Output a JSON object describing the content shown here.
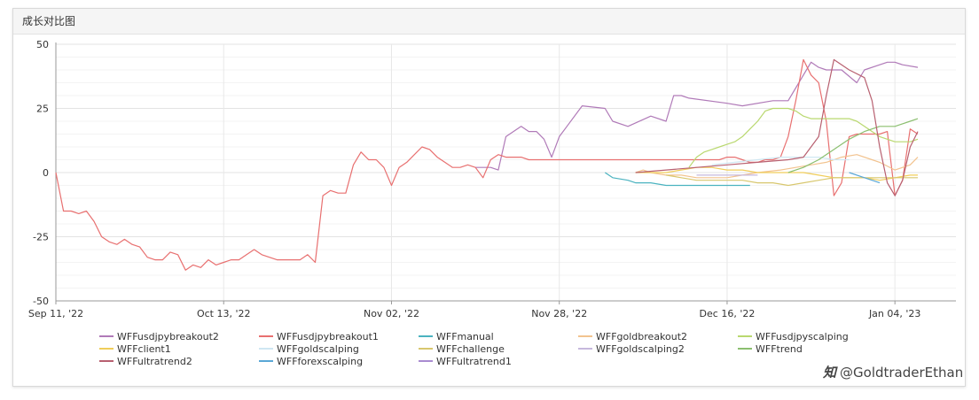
{
  "panel": {
    "title": "成长对比图"
  },
  "watermark": {
    "text": "@GoldtraderEthan",
    "logo": "知"
  },
  "chart_data": {
    "type": "line",
    "xlabel": "",
    "ylabel": "",
    "grid": true,
    "legend_position": "bottom",
    "xlim": [
      0,
      118
    ],
    "ylim": [
      -50,
      50
    ],
    "y_ticks": [
      50,
      25,
      0,
      -25,
      -50
    ],
    "x_ticks": [
      {
        "x": 0,
        "label": "Sep 11, '22"
      },
      {
        "x": 22,
        "label": "Oct 13, '22"
      },
      {
        "x": 44,
        "label": "Nov 02, '22"
      },
      {
        "x": 66,
        "label": "Nov 28, '22"
      },
      {
        "x": 88,
        "label": "Dec 16, '22"
      },
      {
        "x": 110,
        "label": "Jan 04, '23"
      }
    ],
    "series": [
      {
        "name": "WFFusdjpybreakout2",
        "color": "#b07ab8",
        "x": [
          55,
          57,
          58,
          59,
          61,
          62,
          63,
          64,
          65,
          66,
          67,
          69,
          72,
          73,
          75,
          78,
          80,
          81,
          82,
          83,
          88,
          90,
          94,
          96,
          99,
          100,
          101,
          103,
          105,
          106,
          108,
          109,
          110,
          111,
          113
        ],
        "y": [
          2,
          2,
          1,
          14,
          18,
          16,
          16,
          13,
          6,
          14,
          18,
          26,
          25,
          20,
          18,
          22,
          20,
          30,
          30,
          29,
          27,
          26,
          28,
          28,
          43,
          41,
          40,
          40,
          35,
          40,
          42,
          43,
          43,
          42,
          41
        ]
      },
      {
        "name": "WFFusdjpybreakout1",
        "color": "#e87070",
        "x": [
          0,
          1,
          2,
          3,
          4,
          5,
          6,
          7,
          8,
          9,
          10,
          11,
          12,
          13,
          14,
          15,
          16,
          17,
          18,
          19,
          20,
          21,
          22,
          23,
          24,
          25,
          26,
          27,
          28,
          29,
          30,
          31,
          32,
          33,
          34,
          35,
          36,
          37,
          38,
          39,
          40,
          41,
          42,
          43,
          44,
          45,
          46,
          47,
          48,
          49,
          50,
          51,
          52,
          53,
          54,
          55,
          56,
          57,
          58,
          59,
          60,
          61,
          62,
          63,
          64,
          65,
          66,
          67,
          68,
          69,
          70,
          71,
          72,
          73,
          74,
          75,
          76,
          77,
          78,
          79,
          80,
          81,
          82,
          83,
          84,
          85,
          86,
          87,
          88,
          89,
          90,
          91,
          92,
          93,
          94,
          95,
          96,
          97,
          98,
          99,
          100,
          101,
          102,
          103,
          104,
          105,
          106,
          107,
          108,
          109,
          110,
          111,
          112,
          113
        ],
        "y": [
          0,
          -15,
          -15,
          -16,
          -15,
          -19,
          -25,
          -27,
          -28,
          -26,
          -28,
          -29,
          -33,
          -34,
          -34,
          -31,
          -32,
          -38,
          -36,
          -37,
          -34,
          -36,
          -35,
          -34,
          -34,
          -32,
          -30,
          -32,
          -33,
          -34,
          -34,
          -34,
          -34,
          -32,
          -35,
          -9,
          -7,
          -8,
          -8,
          3,
          8,
          5,
          5,
          2,
          -5,
          2,
          4,
          7,
          10,
          9,
          6,
          4,
          2,
          2,
          3,
          2,
          -2,
          5,
          7,
          6,
          6,
          6,
          5,
          5,
          5,
          5,
          5,
          5,
          5,
          5,
          5,
          5,
          5,
          5,
          5,
          5,
          5,
          5,
          5,
          5,
          5,
          5,
          5,
          5,
          5,
          5,
          5,
          5,
          6,
          6,
          5,
          4,
          4,
          5,
          5,
          6,
          14,
          28,
          44,
          38,
          35,
          20,
          -9,
          -4,
          14,
          15,
          15,
          15,
          15,
          16,
          -9,
          -3,
          17,
          15
        ]
      },
      {
        "name": "WFFmanual",
        "color": "#4bb3c0",
        "x": [
          72,
          73,
          75,
          76,
          78,
          80,
          82,
          85,
          88,
          91
        ],
        "y": [
          0,
          -2,
          -3,
          -4,
          -4,
          -5,
          -5,
          -5,
          -5,
          -5
        ]
      },
      {
        "name": "WFFgoldbreakout2",
        "color": "#f2c38f",
        "x": [
          76,
          77,
          78,
          80,
          82,
          84,
          86,
          88,
          90,
          92,
          95,
          97,
          99,
          101,
          103,
          105,
          107,
          108,
          110,
          111,
          112,
          113
        ],
        "y": [
          0,
          1,
          0,
          -1,
          -1,
          -2,
          -2,
          -2,
          -1,
          0,
          1,
          2,
          3,
          4,
          6,
          7,
          5,
          4,
          1,
          2,
          3,
          6
        ]
      },
      {
        "name": "WFFusdjpyscalping",
        "color": "#b9d86f",
        "x": [
          83,
          84,
          85,
          86,
          87,
          88,
          89,
          90,
          91,
          92,
          93,
          94,
          95,
          96,
          97,
          98,
          99,
          100,
          101,
          102,
          103,
          104,
          105,
          106,
          107,
          108,
          109,
          110,
          111,
          112,
          113
        ],
        "y": [
          2,
          6,
          8,
          9,
          10,
          11,
          12,
          14,
          17,
          20,
          24,
          25,
          25,
          25,
          24,
          22,
          21,
          21,
          21,
          21,
          21,
          21,
          20,
          18,
          16,
          14,
          13,
          12,
          12,
          12,
          13
        ]
      },
      {
        "name": "WFFclient1",
        "color": "#f0cd5a",
        "x": [
          76,
          78,
          80,
          82,
          84,
          86,
          88,
          90,
          92,
          94,
          96,
          98,
          100,
          102,
          104,
          106,
          108,
          110,
          112,
          113
        ],
        "y": [
          0,
          0,
          0,
          1,
          2,
          2,
          1,
          1,
          0,
          0,
          0,
          0,
          -1,
          -2,
          -2,
          -2,
          -3,
          -2,
          -1,
          -1
        ]
      },
      {
        "name": "WFFgoldscalping",
        "color": "#cfe7f2",
        "x": [
          86,
          89,
          92,
          95,
          98,
          100,
          102,
          104
        ],
        "y": [
          3,
          4,
          5,
          6,
          6,
          6,
          5,
          5
        ]
      },
      {
        "name": "WFFchallenge",
        "color": "#d8c76e",
        "x": [
          80,
          82,
          84,
          86,
          88,
          90,
          92,
          94,
          96,
          98,
          100,
          102,
          104,
          106,
          108,
          110,
          112,
          113
        ],
        "y": [
          -1,
          -2,
          -3,
          -3,
          -3,
          -3,
          -4,
          -4,
          -5,
          -4,
          -3,
          -2,
          -2,
          -2,
          -2,
          -2,
          -2,
          -2
        ]
      },
      {
        "name": "WFFgoldscalping2",
        "color": "#c6b8dd",
        "x": [
          84,
          86,
          88,
          90,
          92
        ],
        "y": [
          -1,
          -1,
          -1,
          -1,
          -1
        ]
      },
      {
        "name": "WFFtrend",
        "color": "#8bbf6f",
        "x": [
          96,
          98,
          100,
          102,
          104,
          106,
          108,
          110,
          112,
          113
        ],
        "y": [
          0,
          2,
          5,
          9,
          13,
          16,
          18,
          18,
          20,
          21
        ]
      },
      {
        "name": "WFFultratrend2",
        "color": "#b86070",
        "x": [
          76,
          80,
          84,
          88,
          92,
          96,
          98,
          100,
          101,
          102,
          104,
          106,
          107,
          108,
          109,
          110,
          111,
          112,
          113
        ],
        "y": [
          0,
          1,
          2,
          3,
          4,
          5,
          6,
          14,
          30,
          44,
          40,
          37,
          28,
          10,
          -4,
          -9,
          -3,
          10,
          16
        ]
      },
      {
        "name": "WFFforexscalping",
        "color": "#5aa7d6",
        "x": [
          104,
          106,
          107,
          108
        ],
        "y": [
          0,
          -2,
          -3,
          -4
        ]
      },
      {
        "name": "WFFultratrend1",
        "color": "#a98bd0",
        "x": [],
        "y": []
      }
    ]
  }
}
